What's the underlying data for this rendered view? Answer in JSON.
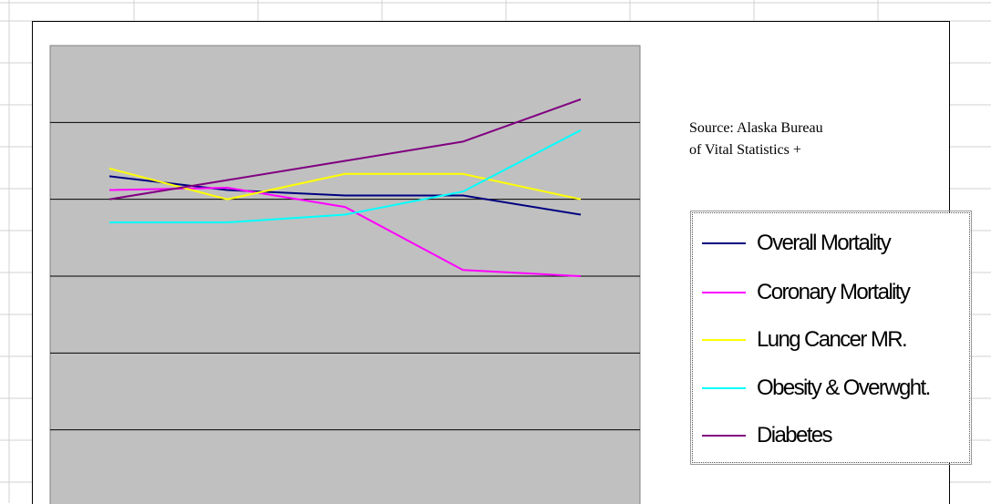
{
  "chart_data": {
    "type": "line",
    "title": "",
    "xlabel": "",
    "ylabel": "",
    "plot_background": "#c0c0c0",
    "gridlines": "horizontal",
    "legend_position": "right",
    "source_note": "Source: Alaska Bureau\nof Vital Statistics +",
    "x": [
      1,
      2,
      3,
      4,
      5
    ],
    "ylim": [
      0,
      6
    ],
    "series": [
      {
        "name": "Overall Mortality",
        "color": "#000080",
        "values": [
          4.3,
          4.12,
          4.05,
          4.05,
          3.8
        ]
      },
      {
        "name": "Coronary Mortality",
        "color": "#ff00ff",
        "values": [
          4.12,
          4.15,
          3.9,
          3.08,
          3.0
        ]
      },
      {
        "name": "Lung Cancer MR.",
        "color": "#ffff00",
        "values": [
          4.4,
          4.0,
          4.33,
          4.33,
          4.0
        ]
      },
      {
        "name": "Obesity & Overwght.",
        "color": "#00ffff",
        "values": [
          3.7,
          3.7,
          3.8,
          4.1,
          4.9
        ]
      },
      {
        "name": "Diabetes",
        "color": "#800080",
        "values": [
          4.0,
          4.25,
          4.5,
          4.75,
          5.3
        ]
      }
    ]
  },
  "legend": {
    "items": [
      {
        "label": "Overall Mortality",
        "color": "#000080"
      },
      {
        "label": "Coronary Mortality",
        "color": "#ff00ff"
      },
      {
        "label": "Lung Cancer MR.",
        "color": "#ffff00"
      },
      {
        "label": "Obesity & Overwght.",
        "color": "#00ffff"
      },
      {
        "label": "Diabetes",
        "color": "#800080"
      }
    ]
  }
}
